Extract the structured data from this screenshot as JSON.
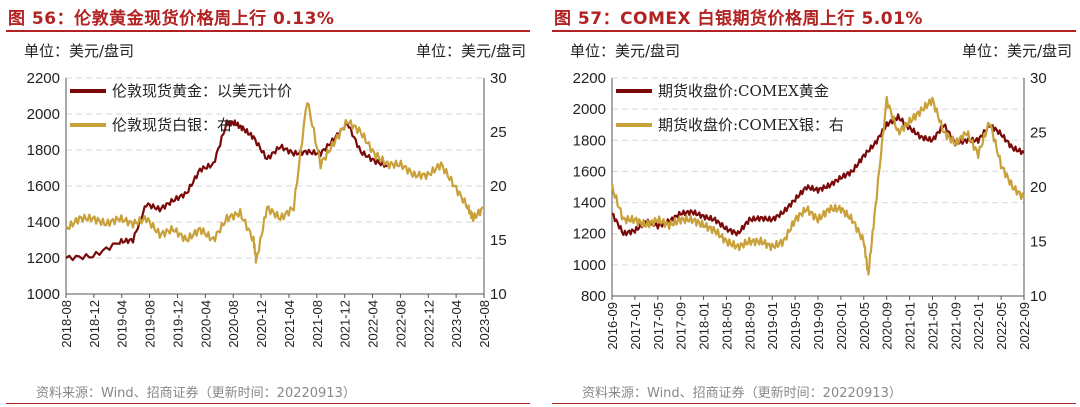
{
  "colors": {
    "title": "#b22222",
    "gold": "#7a0a0a",
    "silver": "#c9a13b",
    "grid": "#d9d9d9"
  },
  "panels": [
    {
      "title": "图 56：伦敦黄金现货价格周上行 0.13%",
      "unit_left": "单位：美元/盘司",
      "unit_right": "单位：美元/盘司",
      "source": "资料来源：Wind、招商证券（更新时间：20220913）",
      "chart_data": {
        "type": "line",
        "x_labels": [
          "2018-08",
          "2018-12",
          "2019-04",
          "2019-08",
          "2019-12",
          "2020-04",
          "2020-08",
          "2020-12",
          "2021-04",
          "2021-08",
          "2021-12",
          "2022-04",
          "2022-08",
          "2022-12",
          "2023-04",
          "2023-08"
        ],
        "y_left": {
          "ticks": [
            1000,
            1200,
            1400,
            1600,
            1800,
            2000,
            2200
          ],
          "lim": [
            1000,
            2200
          ]
        },
        "y_right": {
          "ticks": [
            10,
            15,
            20,
            25,
            30
          ],
          "lim": [
            10,
            30
          ]
        },
        "series": [
          {
            "name": "伦敦现货黄金：以美元计价",
            "axis": "left",
            "color": "#7a0a0a",
            "x": [
              0,
              1,
              2,
              2.5,
              3,
              3.5,
              4,
              4.5,
              5,
              5.5,
              6,
              6.3,
              6.6,
              7,
              7.5,
              8,
              8.5,
              9,
              9.5,
              10,
              10.5,
              11,
              11.5,
              12
            ],
            "values": [
              1200,
              1210,
              1290,
              1300,
              1500,
              1470,
              1520,
              1560,
              1690,
              1720,
              1950,
              1950,
              1920,
              1870,
              1750,
              1820,
              1780,
              1790,
              1780,
              1860,
              1950,
              1790,
              1740,
              1710
            ]
          },
          {
            "name": "伦敦现货白银：右",
            "axis": "right",
            "color": "#c9a13b",
            "x": [
              0,
              0.5,
              1,
              1.5,
              2,
              2.5,
              3,
              3.5,
              4,
              4.5,
              5,
              5.5,
              6,
              6.5,
              7,
              7.1,
              7.5,
              8,
              8.5,
              9,
              9.5,
              10,
              10.5,
              11,
              11.5,
              12,
              12.5,
              13,
              13.5,
              14,
              14.5,
              15,
              15.2,
              15.6
            ],
            "values": [
              16,
              17,
              17,
              16.5,
              17,
              16.5,
              17,
              15.5,
              16,
              15,
              16,
              15,
              17,
              17.5,
              15,
              13,
              18,
              17,
              18,
              28,
              22,
              24,
              26,
              25,
              23,
              22,
              22,
              21,
              21,
              22,
              20,
              18,
              17,
              18
            ]
          }
        ]
      }
    },
    {
      "title": "图 57：COMEX 白银期货价格周上行 5.01%",
      "unit_left": "单位：美元/盘司",
      "unit_right": "单位：美元/盘司",
      "source": "资料来源：Wind、招商证券（更新时间：20220913）",
      "chart_data": {
        "type": "line",
        "x_labels": [
          "2016-09",
          "2017-01",
          "2017-05",
          "2017-09",
          "2018-01",
          "2018-05",
          "2018-09",
          "2019-01",
          "2019-05",
          "2019-09",
          "2020-01",
          "2020-05",
          "2020-09",
          "2021-01",
          "2021-05",
          "2021-09",
          "2022-01",
          "2022-05",
          "2022-09"
        ],
        "y_left": {
          "ticks": [
            800,
            1000,
            1200,
            1400,
            1600,
            1800,
            2000,
            2200
          ],
          "lim": [
            800,
            2200
          ]
        },
        "y_right": {
          "ticks": [
            10,
            15,
            20,
            25,
            30
          ],
          "lim": [
            10,
            30
          ]
        },
        "series": [
          {
            "name": "期货收盘价:COMEX黄金",
            "axis": "left",
            "color": "#7a0a0a",
            "x": [
              0,
              0.5,
              1,
              1.5,
              2,
              2.5,
              3,
              3.5,
              4,
              4.5,
              5,
              5.5,
              6,
              6.5,
              7,
              7.5,
              8,
              8.5,
              9,
              9.5,
              10,
              10.5,
              11,
              11.5,
              12,
              12.5,
              13,
              13.5,
              14,
              14.5,
              15,
              15.5,
              16,
              16.5,
              17,
              17.5,
              18
            ],
            "values": [
              1330,
              1200,
              1220,
              1280,
              1250,
              1280,
              1330,
              1340,
              1310,
              1290,
              1230,
              1200,
              1290,
              1300,
              1290,
              1340,
              1420,
              1500,
              1480,
              1510,
              1560,
              1600,
              1700,
              1780,
              1900,
              1950,
              1880,
              1820,
              1800,
              1900,
              1780,
              1800,
              1800,
              1900,
              1840,
              1750,
              1720
            ]
          },
          {
            "name": "期货收盘价:COMEX银：右",
            "axis": "right",
            "color": "#c9a13b",
            "x": [
              0,
              0.5,
              1,
              1.5,
              2,
              2.5,
              3,
              3.5,
              4,
              4.5,
              5,
              5.5,
              6,
              6.5,
              7,
              7.5,
              8,
              8.5,
              9,
              9.5,
              10,
              10.5,
              11,
              11.2,
              11.5,
              12,
              12.5,
              13,
              13.5,
              14,
              14.5,
              15,
              15.5,
              16,
              16.5,
              17,
              17.5,
              18
            ],
            "values": [
              20,
              17,
              17,
              16.5,
              17,
              16.5,
              17,
              17,
              16.5,
              16,
              15,
              14.5,
              15,
              15,
              14.5,
              15,
              17,
              18,
              17,
              18,
              18,
              17,
              15,
              12,
              18,
              28,
              25,
              26,
              27,
              28,
              25,
              24,
              25,
              23,
              26,
              22,
              20,
              19
            ]
          }
        ]
      }
    }
  ]
}
